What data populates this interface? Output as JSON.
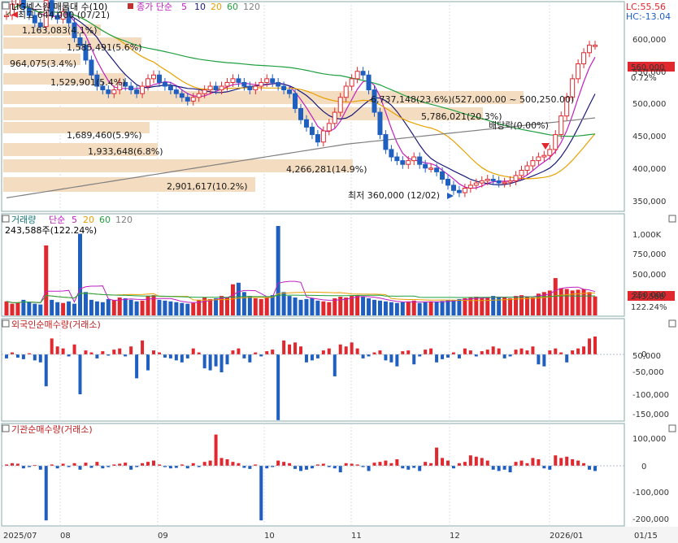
{
  "header": {
    "title": "LIG넥스원 매물대 수(10)",
    "ma_legend": {
      "label": "종가 단순",
      "periods": [
        "5",
        "10",
        "20",
        "60",
        "120"
      ]
    },
    "lc": "LC:55.56",
    "hc": "HC:-13.04"
  },
  "colors": {
    "up": "#e0282e",
    "down": "#1f5fbf",
    "ma5": "#c020c0",
    "ma10": "#1a1a7a",
    "ma20": "#e8a000",
    "ma60": "#20a040",
    "ma120": "#808080",
    "volume_profile": "#f3dcc0"
  },
  "price_panel": {
    "axis_ticks": [
      "600,000",
      "550,000",
      "500,000",
      "450,000",
      "400,000",
      "350,000"
    ],
    "current_price": "560,000",
    "current_change": "0.72%",
    "high_marker": "최고 644,000 (07/21)",
    "low_marker": "최저 360,000 (12/02)",
    "dividend_marker": "배당락(0.00%)",
    "volume_profile_labels": [
      "1,163,083(4.1%)",
      "1,585,491(5.6%)",
      "964,075(3.4%)",
      "1,529,901(5.4%)",
      "6,737,148(23.6%)(527,000.00 ~ 500,250.00)",
      "5,786,021(20.3%)",
      "1,689,460(5.9%)",
      "1,933,648(6.8%)",
      "4,266,281(14.9%)",
      "2,901,617(10.2%)"
    ]
  },
  "volume_panel": {
    "title": "거래량",
    "ma_legend": {
      "label": "단순",
      "periods": [
        "5",
        "20",
        "60",
        "120"
      ]
    },
    "current": "243,588주(122.24%)",
    "axis_ticks": [
      "1,000K",
      "750,000",
      "500,000",
      "250,000"
    ],
    "current_value": "243,588",
    "current_pct": "122.24%"
  },
  "foreign_panel": {
    "title": "외국인순매수량(거래소)",
    "axis_ticks": [
      "50,000",
      "0",
      "-50,000",
      "-100,000",
      "-150,000"
    ]
  },
  "institution_panel": {
    "title": "기관순매수량(거래소)",
    "axis_ticks": [
      "100,000",
      "0",
      "-100,000",
      "-200,000"
    ]
  },
  "x_axis": {
    "labels": [
      "2025/07",
      "08",
      "09",
      "10",
      "11",
      "12",
      "2026/01",
      "01/15"
    ]
  },
  "chart_data": {
    "type": "candlestick",
    "price_ylim": [
      350000,
      600000
    ],
    "price_closes": [
      600000,
      615000,
      625000,
      610000,
      600000,
      590000,
      585000,
      620000,
      600000,
      595000,
      605000,
      590000,
      570000,
      560000,
      540000,
      520000,
      505000,
      500000,
      495000,
      500000,
      510000,
      505000,
      500000,
      495000,
      505000,
      515000,
      520000,
      510000,
      505000,
      500000,
      495000,
      490000,
      485000,
      490000,
      495000,
      500000,
      505000,
      500000,
      505000,
      510000,
      515000,
      510000,
      505000,
      500000,
      505000,
      510000,
      515000,
      510000,
      505000,
      500000,
      495000,
      475000,
      460000,
      450000,
      440000,
      430000,
      445000,
      455000,
      470000,
      490000,
      505000,
      515000,
      525000,
      520000,
      500000,
      470000,
      440000,
      420000,
      410000,
      405000,
      400000,
      405000,
      410000,
      400000,
      395000,
      395000,
      390000,
      380000,
      372000,
      365000,
      362000,
      368000,
      372000,
      375000,
      378000,
      380000,
      378000,
      375000,
      376000,
      378000,
      385000,
      392000,
      398000,
      405000,
      410000,
      412000,
      420000,
      440000,
      465000,
      490000,
      515000,
      535000,
      550000,
      560000,
      560000
    ],
    "volume": [
      180000,
      150000,
      160000,
      200000,
      170000,
      150000,
      140000,
      900000,
      200000,
      170000,
      160000,
      180000,
      150000,
      1050000,
      300000,
      200000,
      180000,
      170000,
      210000,
      200000,
      230000,
      220000,
      200000,
      180000,
      190000,
      250000,
      260000,
      200000,
      190000,
      180000,
      170000,
      160000,
      150000,
      160000,
      200000,
      230000,
      210000,
      220000,
      250000,
      230000,
      400000,
      420000,
      300000,
      250000,
      220000,
      210000,
      230000,
      260000,
      1150000,
      300000,
      250000,
      230000,
      200000,
      210000,
      220000,
      190000,
      180000,
      170000,
      220000,
      240000,
      230000,
      250000,
      260000,
      240000,
      220000,
      200000,
      190000,
      180000,
      170000,
      160000,
      170000,
      180000,
      190000,
      160000,
      170000,
      180000,
      175000,
      185000,
      195000,
      200000,
      210000,
      220000,
      230000,
      240000,
      220000,
      230000,
      250000,
      240000,
      230000,
      220000,
      250000,
      260000,
      240000,
      230000,
      280000,
      300000,
      320000,
      480000,
      350000,
      340000,
      320000,
      330000,
      340000,
      300000,
      243588
    ],
    "foreign_net": [
      -10000,
      5000,
      -8000,
      -12000,
      3000,
      -15000,
      -20000,
      -80000,
      40000,
      20000,
      15000,
      -5000,
      25000,
      -100000,
      10000,
      5000,
      -10000,
      8000,
      -3000,
      12000,
      15000,
      -5000,
      20000,
      -60000,
      35000,
      -40000,
      10000,
      5000,
      -8000,
      -10000,
      -15000,
      -20000,
      -10000,
      15000,
      5000,
      -35000,
      -40000,
      -30000,
      -45000,
      -25000,
      10000,
      15000,
      -10000,
      -20000,
      5000,
      -5000,
      8000,
      12000,
      -165000,
      35000,
      25000,
      30000,
      20000,
      -20000,
      -15000,
      -10000,
      10000,
      15000,
      -55000,
      25000,
      20000,
      30000,
      15000,
      -10000,
      -5000,
      5000,
      10000,
      -15000,
      -20000,
      -30000,
      8000,
      10000,
      -25000,
      -5000,
      12000,
      15000,
      -20000,
      -12000,
      -8000,
      5000,
      -10000,
      15000,
      10000,
      -5000,
      8000,
      12000,
      20000,
      15000,
      -10000,
      -5000,
      12000,
      15000,
      10000,
      20000,
      -25000,
      -30000,
      10000,
      15000,
      5000,
      -20000,
      10000,
      15000,
      20000,
      40000,
      45000
    ],
    "institution_net": [
      5000,
      10000,
      8000,
      -10000,
      -5000,
      3000,
      -15000,
      -210000,
      5000,
      -10000,
      8000,
      -5000,
      10000,
      -15000,
      12000,
      -8000,
      15000,
      -10000,
      -5000,
      5000,
      8000,
      12000,
      -15000,
      -5000,
      10000,
      15000,
      20000,
      5000,
      -5000,
      -10000,
      -8000,
      5000,
      -10000,
      10000,
      -5000,
      15000,
      20000,
      120000,
      30000,
      25000,
      15000,
      10000,
      -8000,
      -12000,
      5000,
      -210000,
      -10000,
      -5000,
      20000,
      15000,
      10000,
      -12000,
      -20000,
      -15000,
      -10000,
      5000,
      8000,
      -5000,
      -10000,
      -25000,
      10000,
      8000,
      5000,
      -5000,
      -20000,
      12000,
      15000,
      20000,
      10000,
      25000,
      -10000,
      -15000,
      -8000,
      -20000,
      15000,
      10000,
      70000,
      30000,
      20000,
      -10000,
      10000,
      15000,
      40000,
      35000,
      30000,
      20000,
      -15000,
      -20000,
      -15000,
      -25000,
      15000,
      20000,
      10000,
      30000,
      25000,
      -10000,
      -15000,
      40000,
      30000,
      35000,
      25000,
      20000,
      10000,
      -15000,
      -20000
    ]
  }
}
